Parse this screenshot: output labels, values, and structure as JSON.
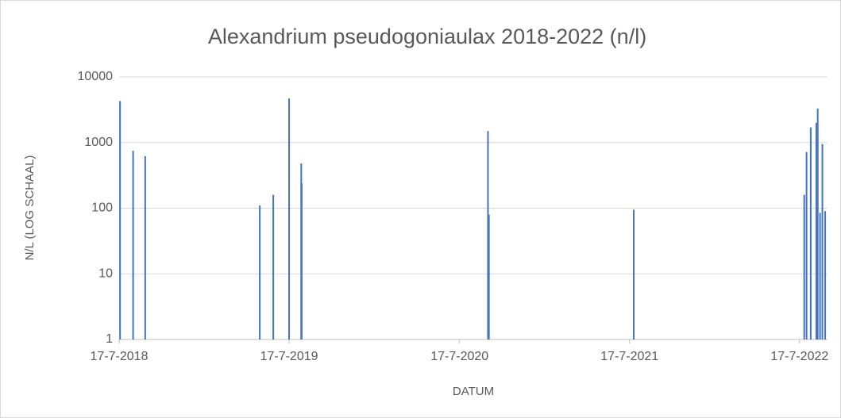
{
  "chart_data": {
    "type": "bar",
    "title": "Alexandrium pseudogoniaulax 2018-2022 (n/l)",
    "x_label": "DATUM",
    "y_label": "N/L (LOG SCHAAL)",
    "x": [
      "2018-07-19",
      "2018-08-16",
      "2018-09-11",
      "2019-05-15",
      "2019-06-13",
      "2019-07-17",
      "2019-08-12",
      "2019-08-13",
      "2020-09-16",
      "2020-09-18",
      "2021-07-26",
      "2022-07-27",
      "2022-08-01",
      "2022-08-10",
      "2022-08-22",
      "2022-08-25",
      "2022-08-30",
      "2022-09-04",
      "2022-09-10"
    ],
    "values": [
      4300,
      750,
      620,
      110,
      160,
      4700,
      480,
      240,
      1500,
      80,
      95,
      160,
      720,
      1700,
      2000,
      3300,
      85,
      950,
      90
    ],
    "color": "#4472c4",
    "xlim": [
      "2018-07-17",
      "2022-09-15"
    ],
    "xticks": [
      {
        "value": "2018-07-17",
        "label": "17-7-2018"
      },
      {
        "value": "2019-07-17",
        "label": "17-7-2019"
      },
      {
        "value": "2020-07-17",
        "label": "17-7-2020"
      },
      {
        "value": "2021-07-17",
        "label": "17-7-2021"
      },
      {
        "value": "2022-07-17",
        "label": "17-7-2022"
      }
    ],
    "ylim": [
      1,
      10000
    ],
    "yticks": [
      1,
      10,
      100,
      1000,
      10000
    ],
    "log_scale": true,
    "grid": true
  }
}
